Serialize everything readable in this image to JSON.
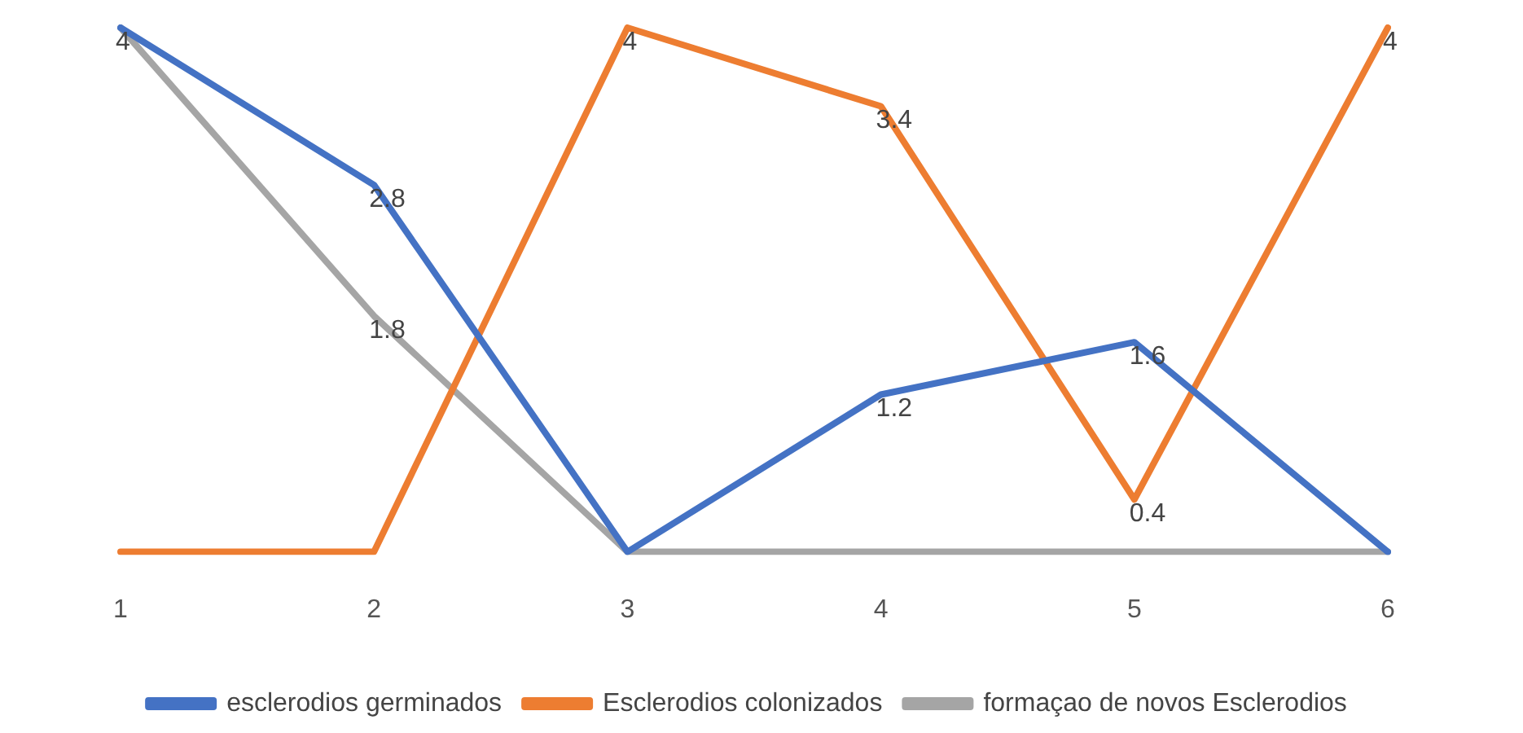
{
  "chart_data": {
    "type": "line",
    "categories": [
      "1",
      "2",
      "3",
      "4",
      "5",
      "6"
    ],
    "series": [
      {
        "name": "esclerodios germinados",
        "color": "#4472c4",
        "values": [
          4,
          2.8,
          0,
          1.2,
          1.6,
          0
        ],
        "value_labels": [
          "4",
          "2.8",
          null,
          "1.2",
          "1.6",
          null
        ]
      },
      {
        "name": "Esclerodios colonizados",
        "color": "#ed7d31",
        "values": [
          0,
          0,
          4,
          3.4,
          0.4,
          4
        ],
        "value_labels": [
          null,
          null,
          "4",
          "3.4",
          "0.4",
          "4"
        ]
      },
      {
        "name": "formaçao de novos Esclerodios",
        "color": "#a5a5a5",
        "values": [
          4,
          1.8,
          0,
          0,
          0,
          0
        ],
        "value_labels": [
          null,
          "1.8",
          null,
          null,
          null,
          null
        ]
      }
    ],
    "tick_labels": "x",
    "grid": false,
    "legend": "bottom",
    "marker": "none",
    "line_style": "solid"
  }
}
